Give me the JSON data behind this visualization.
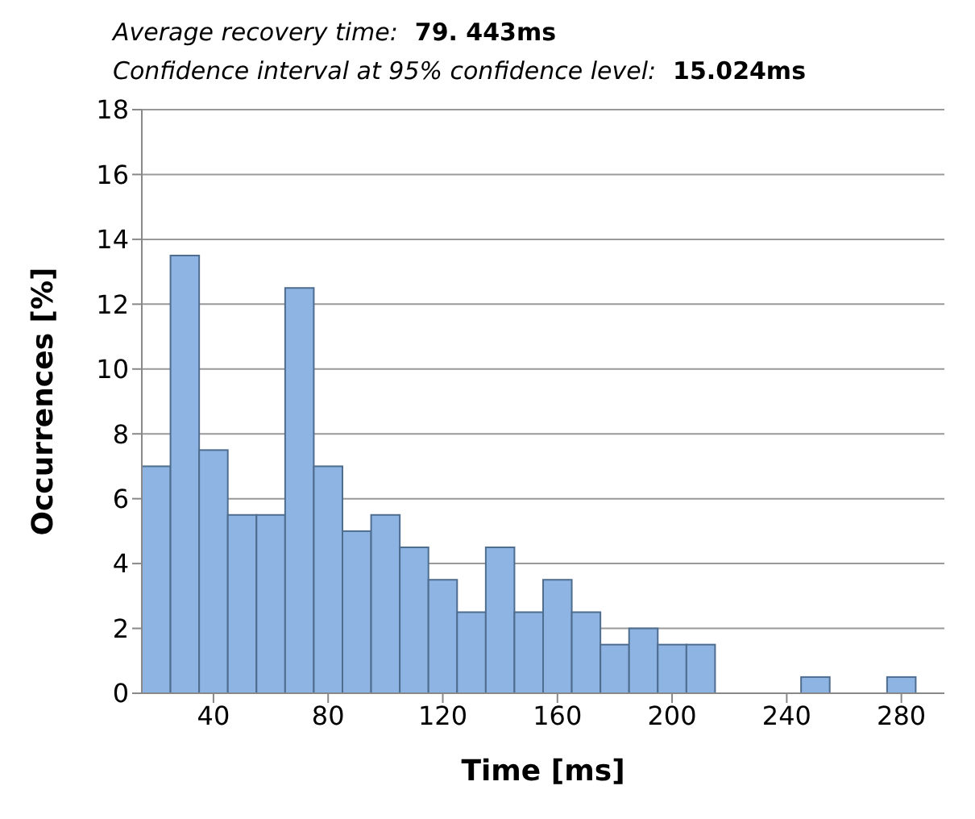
{
  "chart_data": {
    "type": "histogram",
    "title": "Average recovery time:  79. 443ms",
    "subtitle": "Confidence interval at 95% confidence level:  15.024ms",
    "xlabel": "Time [ms]",
    "ylabel": "Occurrences  [%]",
    "bins": [
      15,
      25,
      35,
      45,
      55,
      65,
      75,
      85,
      95,
      105,
      115,
      125,
      135,
      145,
      155,
      165,
      175,
      185,
      195,
      205,
      215,
      225,
      235,
      245,
      255,
      265,
      275,
      285,
      295
    ],
    "values": [
      7,
      13.5,
      7.5,
      5.5,
      5.5,
      12.5,
      7,
      5,
      5.5,
      4.5,
      3.5,
      2.5,
      4.5,
      2.5,
      3.5,
      2.5,
      1.5,
      2,
      1.5,
      1.5,
      0,
      0,
      0,
      0.5,
      0,
      0,
      0.5,
      0
    ],
    "color": "#8db4e2",
    "xlim": [
      15,
      295
    ],
    "xticks": [
      40,
      80,
      120,
      160,
      200,
      240,
      280
    ],
    "ylim": [
      0,
      18
    ],
    "yticks": [
      0,
      2,
      4,
      6,
      8,
      10,
      12,
      14,
      16,
      18
    ],
    "grid": "y"
  }
}
